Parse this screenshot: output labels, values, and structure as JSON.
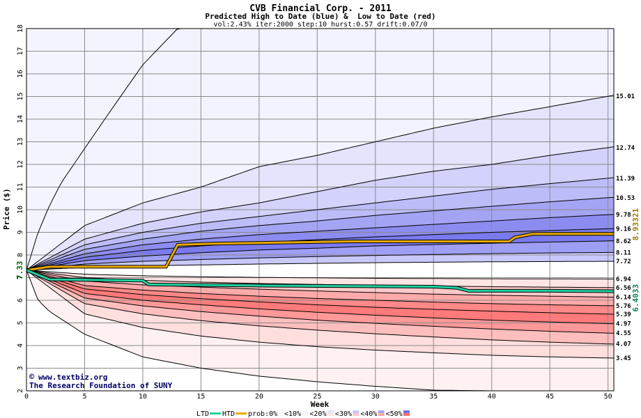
{
  "chart_data": {
    "type": "area",
    "title": "CVB Financial Corp. - 2011",
    "subtitle": "Predicted High to Date (blue) &  Low to Date (red)",
    "params": "vol:2.43% iter:2000 step:10 hurst:0.57 drift:0.07/0",
    "xlabel": "Week",
    "ylabel": "Price ($)",
    "xlim": [
      0,
      50.5
    ],
    "ylim": [
      2,
      18
    ],
    "x_ticks": [
      0,
      5,
      10,
      15,
      20,
      25,
      30,
      35,
      40,
      45,
      50
    ],
    "y_ticks": [
      2,
      3,
      4,
      5,
      6,
      7,
      8,
      9,
      10,
      11,
      12,
      13,
      14,
      15,
      16,
      17,
      18
    ],
    "grid": true,
    "start_price": 7.33,
    "start_label": "7.33",
    "end_labels": [
      "15.01",
      "12.74",
      "11.39",
      "10.53",
      "9.78",
      "9.16",
      "8.62",
      "8.11",
      "7.72",
      "6.94",
      "6.56",
      "6.14",
      "5.76",
      "5.39",
      "4.97",
      "4.55",
      "4.07",
      "3.45"
    ],
    "high_to_date_value": "8.93321",
    "low_to_date_value": "6.4033",
    "colors": {
      "htd_line": "#e8a800",
      "ltd_line": "#20d0a0",
      "grid": "#888888",
      "end_label_htd": "#a07800",
      "end_label_ltd": "#108060",
      "start_label": "#006600"
    },
    "high_contours": [
      {
        "name": "Outer max",
        "x": [
          0,
          1,
          2,
          3,
          5,
          7,
          10,
          13
        ],
        "y": [
          7.33,
          9.0,
          10.2,
          11.2,
          12.7,
          14.2,
          16.4,
          18.0
        ]
      },
      {
        "name": "15.01",
        "x": [
          0,
          5,
          10,
          15,
          20,
          25,
          30,
          35,
          40,
          45,
          50
        ],
        "y": [
          7.33,
          9.3,
          10.3,
          11.0,
          11.9,
          12.4,
          13.0,
          13.6,
          14.1,
          14.55,
          15.01
        ]
      },
      {
        "name": "12.74",
        "x": [
          0,
          5,
          10,
          15,
          20,
          25,
          30,
          35,
          40,
          45,
          50
        ],
        "y": [
          7.33,
          8.7,
          9.4,
          9.9,
          10.3,
          10.8,
          11.3,
          11.7,
          12.0,
          12.4,
          12.74
        ]
      },
      {
        "name": "11.39",
        "x": [
          0,
          5,
          10,
          15,
          20,
          25,
          30,
          35,
          40,
          45,
          50
        ],
        "y": [
          7.33,
          8.45,
          9.0,
          9.4,
          9.7,
          10.0,
          10.3,
          10.6,
          10.9,
          11.15,
          11.39
        ]
      },
      {
        "name": "10.53",
        "x": [
          0,
          5,
          10,
          15,
          20,
          25,
          30,
          35,
          40,
          45,
          50
        ],
        "y": [
          7.33,
          8.25,
          8.7,
          9.05,
          9.3,
          9.5,
          9.75,
          9.95,
          10.15,
          10.35,
          10.53
        ]
      },
      {
        "name": "9.78",
        "x": [
          0,
          5,
          10,
          15,
          20,
          25,
          30,
          35,
          40,
          45,
          50
        ],
        "y": [
          7.33,
          8.05,
          8.45,
          8.7,
          8.9,
          9.05,
          9.2,
          9.35,
          9.5,
          9.65,
          9.78
        ]
      },
      {
        "name": "9.16",
        "x": [
          0,
          5,
          10,
          15,
          20,
          25,
          30,
          35,
          40,
          45,
          50
        ],
        "y": [
          7.33,
          7.9,
          8.2,
          8.4,
          8.55,
          8.68,
          8.8,
          8.9,
          9.0,
          9.08,
          9.16
        ]
      },
      {
        "name": "8.62",
        "x": [
          0,
          5,
          10,
          15,
          20,
          25,
          30,
          35,
          40,
          45,
          50
        ],
        "y": [
          7.33,
          7.75,
          7.95,
          8.1,
          8.22,
          8.3,
          8.4,
          8.46,
          8.52,
          8.57,
          8.62
        ]
      },
      {
        "name": "8.11",
        "x": [
          0,
          5,
          10,
          15,
          20,
          25,
          30,
          35,
          40,
          45,
          50
        ],
        "y": [
          7.33,
          7.6,
          7.72,
          7.8,
          7.87,
          7.93,
          7.98,
          8.02,
          8.06,
          8.09,
          8.11
        ]
      },
      {
        "name": "7.72",
        "x": [
          0,
          5,
          10,
          15,
          20,
          25,
          30,
          35,
          40,
          45,
          50
        ],
        "y": [
          7.33,
          7.45,
          7.52,
          7.56,
          7.6,
          7.63,
          7.66,
          7.68,
          7.7,
          7.71,
          7.72
        ]
      }
    ],
    "low_contours": [
      {
        "name": "6.94",
        "x": [
          0,
          5,
          10,
          15,
          20,
          25,
          30,
          35,
          40,
          45,
          50
        ],
        "y": [
          7.33,
          7.15,
          7.08,
          7.04,
          7.01,
          6.99,
          6.97,
          6.96,
          6.95,
          6.945,
          6.94
        ]
      },
      {
        "name": "6.56",
        "x": [
          0,
          5,
          10,
          15,
          20,
          25,
          30,
          35,
          40,
          45,
          50
        ],
        "y": [
          7.33,
          7.0,
          6.88,
          6.8,
          6.74,
          6.7,
          6.66,
          6.63,
          6.6,
          6.58,
          6.56
        ]
      },
      {
        "name": "6.14",
        "x": [
          0,
          5,
          10,
          15,
          20,
          25,
          30,
          35,
          40,
          45,
          50
        ],
        "y": [
          7.33,
          6.85,
          6.68,
          6.58,
          6.49,
          6.41,
          6.34,
          6.27,
          6.22,
          6.18,
          6.14
        ]
      },
      {
        "name": "5.76",
        "x": [
          0,
          5,
          10,
          15,
          20,
          25,
          30,
          35,
          40,
          45,
          50
        ],
        "y": [
          7.33,
          6.65,
          6.45,
          6.3,
          6.18,
          6.08,
          6.0,
          5.92,
          5.85,
          5.8,
          5.76
        ]
      },
      {
        "name": "5.39",
        "x": [
          0,
          5,
          10,
          15,
          20,
          25,
          30,
          35,
          40,
          45,
          50
        ],
        "y": [
          7.33,
          6.5,
          6.25,
          6.07,
          5.93,
          5.8,
          5.69,
          5.6,
          5.52,
          5.45,
          5.39
        ]
      },
      {
        "name": "4.97",
        "x": [
          0,
          5,
          10,
          15,
          20,
          25,
          30,
          35,
          40,
          45,
          50
        ],
        "y": [
          7.33,
          6.3,
          6.0,
          5.8,
          5.62,
          5.47,
          5.34,
          5.22,
          5.12,
          5.04,
          4.97
        ]
      },
      {
        "name": "4.55",
        "x": [
          0,
          5,
          10,
          15,
          20,
          25,
          30,
          35,
          40,
          45,
          50
        ],
        "y": [
          7.33,
          6.1,
          5.75,
          5.5,
          5.3,
          5.12,
          4.98,
          4.85,
          4.73,
          4.63,
          4.55
        ]
      },
      {
        "name": "4.07",
        "x": [
          0,
          5,
          10,
          15,
          20,
          25,
          30,
          35,
          40,
          45,
          50
        ],
        "y": [
          7.33,
          5.85,
          5.4,
          5.1,
          4.87,
          4.68,
          4.52,
          4.38,
          4.25,
          4.15,
          4.07
        ]
      },
      {
        "name": "3.45",
        "x": [
          0,
          5,
          10,
          15,
          20,
          25,
          30,
          35,
          40,
          45,
          50
        ],
        "y": [
          7.33,
          5.4,
          4.8,
          4.42,
          4.15,
          3.95,
          3.8,
          3.68,
          3.57,
          3.5,
          3.45
        ]
      },
      {
        "name": "Outer min",
        "x": [
          0,
          1,
          2,
          5,
          10,
          15,
          20,
          25,
          30,
          35,
          40,
          45,
          50.5
        ],
        "y": [
          7.33,
          6.0,
          5.5,
          4.5,
          3.5,
          3.0,
          2.65,
          2.4,
          2.2,
          2.03,
          2.0,
          2.0,
          2.0
        ]
      }
    ],
    "high_to_date_line": {
      "name": "HTD",
      "x": [
        0,
        2,
        12,
        13,
        16,
        28,
        41.5,
        42,
        43.5,
        50.5
      ],
      "y": [
        7.33,
        7.48,
        7.48,
        8.45,
        8.5,
        8.6,
        8.6,
        8.78,
        8.93,
        8.93
      ]
    },
    "low_to_date_line": {
      "name": "LTD",
      "x": [
        0,
        2,
        10,
        10.5,
        20,
        35,
        37,
        38,
        45,
        50.5
      ],
      "y": [
        7.33,
        6.92,
        6.87,
        6.7,
        6.65,
        6.6,
        6.55,
        6.42,
        6.42,
        6.4
      ]
    }
  },
  "credit": {
    "copyright_symbol": "©",
    "website": "www.textbiz.org",
    "organization": "The Research Foundation of SUNY"
  },
  "legend": {
    "ltd": "LTD",
    "htd": "HTD",
    "prob_prefix": "prob:0%",
    "items": [
      "<10%",
      "<20%",
      "<30%",
      "<40%",
      "<50%"
    ],
    "swatches": {
      "zero": [
        "#ffffff",
        "#ffffff"
      ],
      "b10": [
        "#f4f4ff",
        "#fff4f4"
      ],
      "b20": [
        "#e2e2ff",
        "#ffe2e2"
      ],
      "b30": [
        "#c8c8ff",
        "#ffc8c8"
      ],
      "b40": [
        "#a8a8ff",
        "#ffa8a8"
      ],
      "b50": [
        "#7070f0",
        "#ff7070"
      ]
    }
  }
}
